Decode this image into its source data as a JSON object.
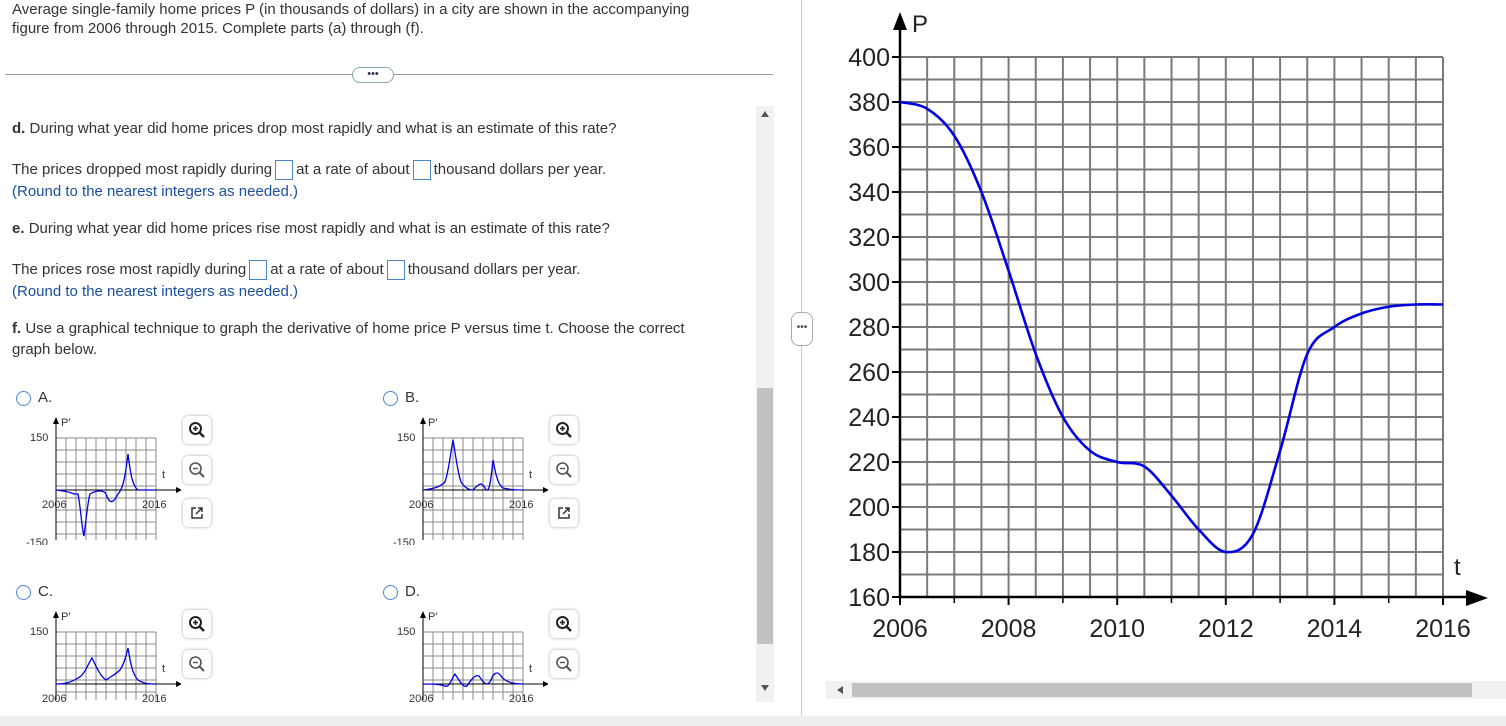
{
  "intro": {
    "line1": "Average single-family home prices P (in thousands of dollars) in a city are shown in the accompanying",
    "line2": "figure from 2006 through 2015. Complete parts (a) through (f)."
  },
  "ellipsis": "•••",
  "part_d": {
    "label": "d.",
    "question": "During what year did home prices drop most rapidly and what is an estimate of this rate?",
    "answer_pre": "The prices dropped most rapidly during",
    "answer_mid": "at a rate of about",
    "answer_post": "thousand dollars per year.",
    "hint": "(Round to the nearest integers as needed.)",
    "year_value": "",
    "rate_value": ""
  },
  "part_e": {
    "label": "e.",
    "question": "During what year did home prices rise most rapidly and what is an estimate of this rate?",
    "answer_pre": "The prices rose most rapidly during",
    "answer_mid": "at a rate of about",
    "answer_post": "thousand dollars per year.",
    "hint": "(Round to the nearest integers as needed.)",
    "year_value": "",
    "rate_value": ""
  },
  "part_f": {
    "label": "f.",
    "line1": "Use a graphical technique to graph the derivative of home price P versus time t. Choose the correct",
    "line2": "graph below."
  },
  "options": [
    {
      "letter": "A.",
      "ylabel": "P′",
      "ymax": "150",
      "ymin": "-150",
      "xmin": "2006",
      "xmax": "2016",
      "xlabel": "t"
    },
    {
      "letter": "B.",
      "ylabel": "P′",
      "ymax": "150",
      "ymin": "-150",
      "xmin": "2006",
      "xmax": "2016",
      "xlabel": "t"
    },
    {
      "letter": "C.",
      "ylabel": "P′",
      "ymax": "150",
      "xmin": "2006",
      "xmax": "2016",
      "xlabel": "t"
    },
    {
      "letter": "D.",
      "ylabel": "P′",
      "ymax": "150",
      "xmin": "2006",
      "xmax": "2016",
      "xlabel": "t"
    }
  ],
  "colors": {
    "curve": "#0000e0",
    "grid": "#7a7a7a",
    "accent": "#4a86c8"
  },
  "chart_data": {
    "type": "line",
    "xlabel": "t",
    "ylabel": "P",
    "xlim": [
      2006,
      2016
    ],
    "ylim": [
      160,
      400
    ],
    "x_ticks": [
      "2006",
      "2008",
      "2010",
      "2012",
      "2014",
      "2016"
    ],
    "y_ticks": [
      "160",
      "180",
      "200",
      "220",
      "240",
      "260",
      "280",
      "300",
      "320",
      "340",
      "360",
      "380",
      "400"
    ],
    "grid": true,
    "x": [
      2006,
      2006.5,
      2007,
      2007.5,
      2008,
      2008.5,
      2009,
      2009.5,
      2010,
      2010.5,
      2011,
      2011.5,
      2012,
      2012.5,
      2013,
      2013.5,
      2014,
      2014.5,
      2015,
      2015.5,
      2016
    ],
    "values": [
      380,
      377,
      365,
      340,
      305,
      268,
      240,
      225,
      220,
      218,
      205,
      190,
      180,
      188,
      225,
      268,
      280,
      286,
      289,
      290,
      290
    ]
  }
}
